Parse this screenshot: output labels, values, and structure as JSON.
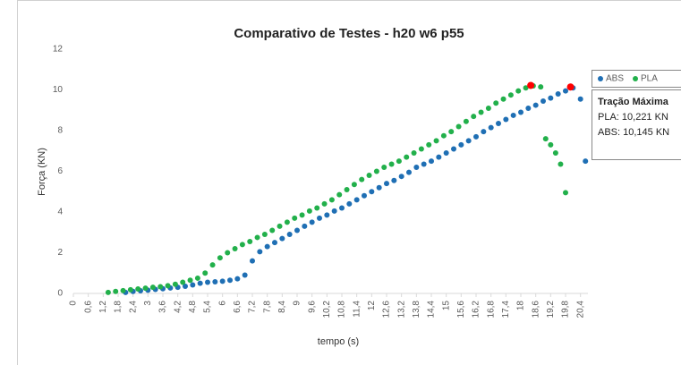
{
  "chart_data": {
    "type": "scatter",
    "title": "Comparativo de Testes - h20 w6 p55",
    "x_label": "tempo (s)",
    "y_label": "Força (KN)",
    "xlim": [
      0,
      20.7
    ],
    "ylim": [
      0,
      12
    ],
    "xticks": [
      0,
      {
        "value": 0.6,
        "label": "0,6"
      },
      {
        "value": 1.2,
        "label": "1,2"
      },
      {
        "value": 1.8,
        "label": "1,8"
      },
      {
        "value": 2.4,
        "label": "2,4"
      },
      3,
      {
        "value": 3.6,
        "label": "3,6"
      },
      {
        "value": 4.2,
        "label": "4,2"
      },
      {
        "value": 4.8,
        "label": "4,8"
      },
      {
        "value": 5.4,
        "label": "5,4"
      },
      6,
      {
        "value": 6.6,
        "label": "6,6"
      },
      {
        "value": 7.2,
        "label": "7,2"
      },
      {
        "value": 7.8,
        "label": "7,8"
      },
      {
        "value": 8.4,
        "label": "8,4"
      },
      9,
      {
        "value": 9.6,
        "label": "9,6"
      },
      {
        "value": 10.2,
        "label": "10,2"
      },
      {
        "value": 10.8,
        "label": "10,8"
      },
      {
        "value": 11.4,
        "label": "11,4"
      },
      12,
      {
        "value": 12.6,
        "label": "12,6"
      },
      {
        "value": 13.2,
        "label": "13,2"
      },
      {
        "value": 13.8,
        "label": "13,8"
      },
      {
        "value": 14.4,
        "label": "14,4"
      },
      15,
      {
        "value": 15.6,
        "label": "15,6"
      },
      {
        "value": 16.2,
        "label": "16,2"
      },
      {
        "value": 16.8,
        "label": "16,8"
      },
      {
        "value": 17.4,
        "label": "17,4"
      },
      18,
      {
        "value": 18.6,
        "label": "18,6"
      },
      {
        "value": 19.2,
        "label": "19,2"
      },
      {
        "value": 19.8,
        "label": "19,8"
      },
      {
        "value": 20.4,
        "label": "20,4"
      }
    ],
    "yticks": [
      0,
      2,
      4,
      6,
      8,
      10,
      12
    ],
    "grid": false,
    "legend": "right",
    "series": [
      {
        "name": "ABS",
        "color": "#1f6fb4",
        "x": [
          2.1,
          2.4,
          2.7,
          3.0,
          3.3,
          3.6,
          3.9,
          4.2,
          4.5,
          4.8,
          5.1,
          5.4,
          5.7,
          6.0,
          6.3,
          6.6,
          6.9,
          7.2,
          7.5,
          7.8,
          8.1,
          8.4,
          8.7,
          9.0,
          9.3,
          9.6,
          9.9,
          10.2,
          10.5,
          10.8,
          11.1,
          11.4,
          11.7,
          12.0,
          12.3,
          12.6,
          12.9,
          13.2,
          13.5,
          13.8,
          14.1,
          14.4,
          14.7,
          15.0,
          15.3,
          15.6,
          15.9,
          16.2,
          16.5,
          16.8,
          17.1,
          17.4,
          17.7,
          18.0,
          18.3,
          18.6,
          18.9,
          19.2,
          19.5,
          19.8,
          20.1,
          20.4,
          20.6
        ],
        "values": [
          0.05,
          0.1,
          0.13,
          0.16,
          0.2,
          0.23,
          0.27,
          0.3,
          0.35,
          0.42,
          0.5,
          0.55,
          0.57,
          0.6,
          0.65,
          0.72,
          0.9,
          1.6,
          2.05,
          2.3,
          2.5,
          2.7,
          2.9,
          3.1,
          3.3,
          3.5,
          3.7,
          3.85,
          4.05,
          4.2,
          4.4,
          4.6,
          4.8,
          5.0,
          5.2,
          5.4,
          5.55,
          5.75,
          5.95,
          6.2,
          6.35,
          6.5,
          6.7,
          6.9,
          7.1,
          7.3,
          7.5,
          7.7,
          7.95,
          8.15,
          8.35,
          8.55,
          8.75,
          8.9,
          9.1,
          9.25,
          9.45,
          9.6,
          9.8,
          9.95,
          10.1,
          9.55,
          6.5
        ]
      },
      {
        "name": "PLA",
        "color": "#22b04b",
        "x": [
          1.4,
          1.7,
          2.0,
          2.3,
          2.6,
          2.9,
          3.2,
          3.5,
          3.8,
          4.1,
          4.4,
          4.7,
          5.0,
          5.3,
          5.6,
          5.9,
          6.2,
          6.5,
          6.8,
          7.1,
          7.4,
          7.7,
          8.0,
          8.3,
          8.6,
          8.9,
          9.2,
          9.5,
          9.8,
          10.1,
          10.4,
          10.7,
          11.0,
          11.3,
          11.6,
          11.9,
          12.2,
          12.5,
          12.8,
          13.1,
          13.4,
          13.7,
          14.0,
          14.3,
          14.6,
          14.9,
          15.2,
          15.5,
          15.8,
          16.1,
          16.4,
          16.7,
          17.0,
          17.3,
          17.6,
          17.9,
          18.2,
          18.5,
          18.8,
          19.0,
          19.2,
          19.4,
          19.6,
          19.8
        ],
        "values": [
          0.05,
          0.1,
          0.14,
          0.18,
          0.22,
          0.26,
          0.3,
          0.33,
          0.38,
          0.45,
          0.55,
          0.65,
          0.75,
          1.0,
          1.4,
          1.75,
          2.0,
          2.2,
          2.4,
          2.55,
          2.75,
          2.9,
          3.1,
          3.3,
          3.5,
          3.7,
          3.85,
          4.05,
          4.2,
          4.4,
          4.6,
          4.85,
          5.1,
          5.35,
          5.6,
          5.8,
          6.0,
          6.2,
          6.35,
          6.5,
          6.7,
          6.9,
          7.1,
          7.3,
          7.5,
          7.75,
          7.95,
          8.2,
          8.45,
          8.7,
          8.9,
          9.1,
          9.35,
          9.55,
          9.75,
          9.95,
          10.1,
          10.2,
          10.15,
          7.6,
          7.3,
          6.9,
          6.35,
          4.95
        ]
      }
    ],
    "highlights": {
      "color": "#ff0000",
      "x": [
        18.4,
        20.0
      ],
      "values": [
        10.221,
        10.145
      ]
    },
    "annotation": {
      "title": "Tração Máxima",
      "lines": [
        "PLA: 10,221 KN",
        "ABS: 10,145 KN"
      ]
    }
  }
}
